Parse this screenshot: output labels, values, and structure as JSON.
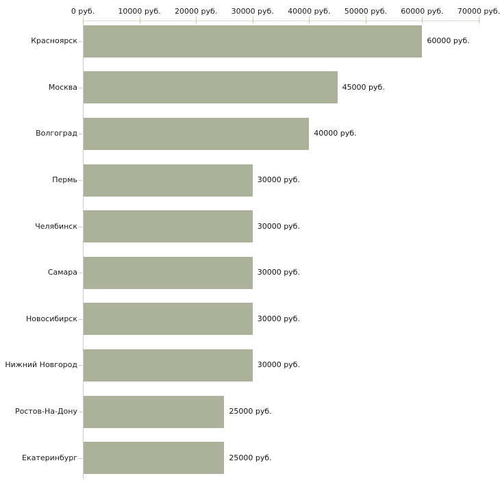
{
  "chart_data": {
    "type": "bar",
    "orientation": "horizontal",
    "title": "",
    "xlabel": "",
    "ylabel": "",
    "unit": "руб.",
    "categories": [
      "Красноярск",
      "Москва",
      "Волгоград",
      "Пермь",
      "Челябинск",
      "Самара",
      "Новосибирск",
      "Нижний Новгород",
      "Ростов-На-Дону",
      "Екатеринбург"
    ],
    "values": [
      60000,
      45000,
      40000,
      30000,
      30000,
      30000,
      30000,
      30000,
      25000,
      25000
    ],
    "value_labels": [
      "60000 руб.",
      "45000 руб.",
      "40000 руб.",
      "30000 руб.",
      "30000 руб.",
      "30000 руб.",
      "30000 руб.",
      "30000 руб.",
      "25000 руб.",
      "25000 руб."
    ],
    "xlim": [
      0,
      70000
    ],
    "x_ticks": [
      0,
      10000,
      20000,
      30000,
      40000,
      50000,
      60000,
      70000
    ],
    "x_tick_labels": [
      "0 руб.",
      "10000 руб.",
      "20000 руб.",
      "30000 руб.",
      "40000 руб.",
      "50000 руб.",
      "60000 руб.",
      "70000 руб."
    ],
    "grid": false,
    "legend": false,
    "colors": {
      "bar": "#acb299",
      "axis_line": "#d9d9cd",
      "tick": "#c8c8a2",
      "y_axis_line": "#cccccc",
      "text": "#1a1a1a",
      "background": "#ffffff"
    }
  }
}
